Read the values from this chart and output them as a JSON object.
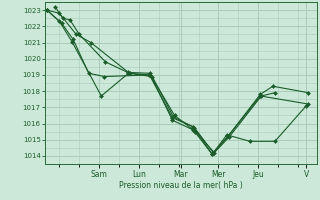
{
  "bg_color": "#cce8d8",
  "grid_color": "#a8ccb8",
  "line_color": "#1a5c2a",
  "marker_color": "#1a5c2a",
  "xlabel": "Pression niveau de la mer( hPa )",
  "ylim": [
    1013.5,
    1023.5
  ],
  "yticks": [
    1014,
    1015,
    1016,
    1017,
    1018,
    1019,
    1020,
    1021,
    1022,
    1023
  ],
  "xlim": [
    0,
    13
  ],
  "day_labels": [
    "Sam",
    "Lun",
    "Mar",
    "Mer",
    "Jeu",
    "V"
  ],
  "day_positions": [
    2.6,
    4.5,
    6.5,
    8.3,
    10.2,
    12.5
  ],
  "series": [
    [
      0.1,
      1023.0,
      0.7,
      1022.3,
      1.3,
      1021.05,
      2.7,
      1017.7,
      4.0,
      1019.1,
      5.0,
      1019.0,
      6.1,
      1016.35,
      7.1,
      1015.8,
      8.0,
      1014.1,
      8.7,
      1015.3,
      9.8,
      1014.9,
      11.0,
      1014.9,
      12.5,
      1017.1
    ],
    [
      0.1,
      1023.0,
      0.7,
      1022.8,
      1.5,
      1021.5,
      2.2,
      1021.0,
      4.0,
      1019.15,
      5.05,
      1019.1,
      6.15,
      1016.4,
      7.15,
      1015.75,
      8.05,
      1014.2,
      8.75,
      1015.2,
      10.3,
      1017.8,
      10.9,
      1018.3,
      12.6,
      1017.9
    ],
    [
      0.5,
      1023.2,
      0.85,
      1022.5,
      1.2,
      1022.4,
      1.65,
      1021.5,
      2.9,
      1019.8,
      4.05,
      1019.1,
      5.1,
      1018.9,
      6.2,
      1016.5,
      7.2,
      1015.5,
      8.1,
      1014.2,
      8.8,
      1015.15,
      10.35,
      1017.7,
      11.0,
      1017.9
    ],
    [
      0.1,
      1023.0,
      0.8,
      1022.2,
      1.35,
      1021.2,
      2.1,
      1019.1,
      2.85,
      1018.9,
      5.05,
      1019.0,
      6.1,
      1016.2,
      7.1,
      1015.6,
      8.0,
      1014.1,
      8.75,
      1015.2,
      10.3,
      1017.7,
      12.6,
      1017.2
    ]
  ]
}
